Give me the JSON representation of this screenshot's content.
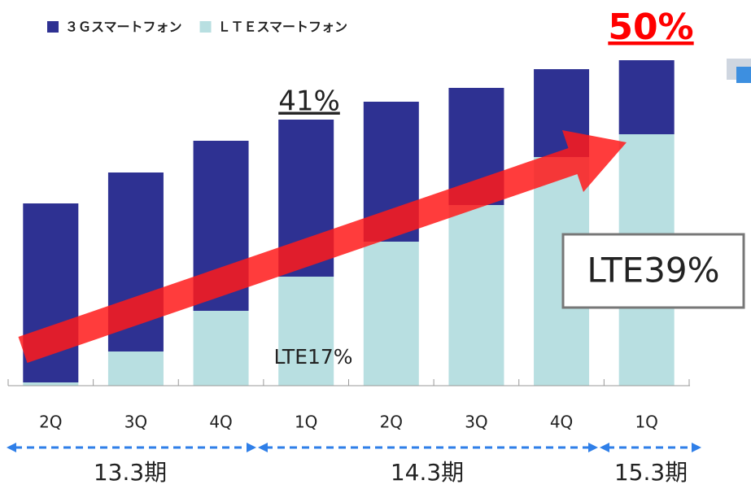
{
  "chart_data": {
    "type": "stacked_bar",
    "categories": [
      "2Q",
      "3Q",
      "4Q",
      "1Q",
      "2Q",
      "3Q",
      "4Q",
      "1Q"
    ],
    "series": [
      {
        "name": "ＬＴＥスマートフォン",
        "color": "#b8dfe1",
        "values": [
          4,
          42,
          92,
          134,
          177,
          222,
          281,
          309
        ]
      },
      {
        "name": "３Ｇスマートフォン",
        "color": "#2e3192",
        "values": [
          220,
          220,
          209,
          193,
          172,
          144,
          108,
          91
        ]
      }
    ],
    "ylim": [
      0,
      474
    ],
    "annotations": [
      "50%",
      "41%",
      "LTE39%",
      "LTE17%"
    ],
    "periods": [
      "13.3期",
      "14.3期",
      "15.3期"
    ]
  }
}
